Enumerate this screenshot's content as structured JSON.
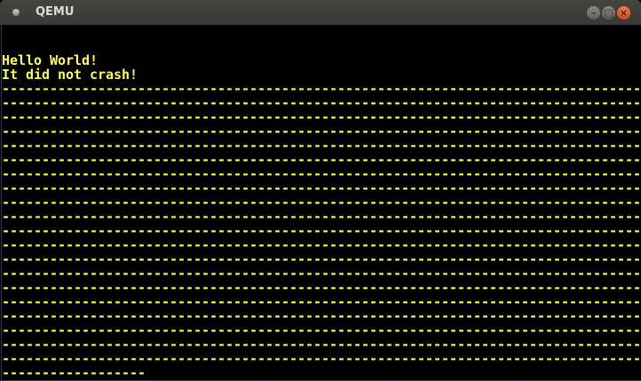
{
  "window": {
    "title": "QEMU",
    "buttons": {
      "minimize": "–",
      "maximize": "□",
      "close": "×"
    }
  },
  "console": {
    "text_color": "#ffff55",
    "lines": [
      "",
      "",
      "Hello World!",
      "It did not crash!",
      "--------------------------------------------------------------------------------",
      "--------------------------------------------------------------------------------",
      "--------------------------------------------------------------------------------",
      "--------------------------------------------------------------------------------",
      "--------------------------------------------------------------------------------",
      "--------------------------------------------------------------------------------",
      "--------------------------------------------------------------------------------",
      "--------------------------------------------------------------------------------",
      "--------------------------------------------------------------------------------",
      "--------------------------------------------------------------------------------",
      "--------------------------------------------------------------------------------",
      "--------------------------------------------------------------------------------",
      "--------------------------------------------------------------------------------",
      "--------------------------------------------------------------------------------",
      "--------------------------------------------------------------------------------",
      "--------------------------------------------------------------------------------",
      "--------------------------------------------------------------------------------",
      "--------------------------------------------------------------------------------",
      "--------------------------------------------------------------------------------",
      "--------------------------------------------------------------------------------",
      "------------------"
    ]
  }
}
